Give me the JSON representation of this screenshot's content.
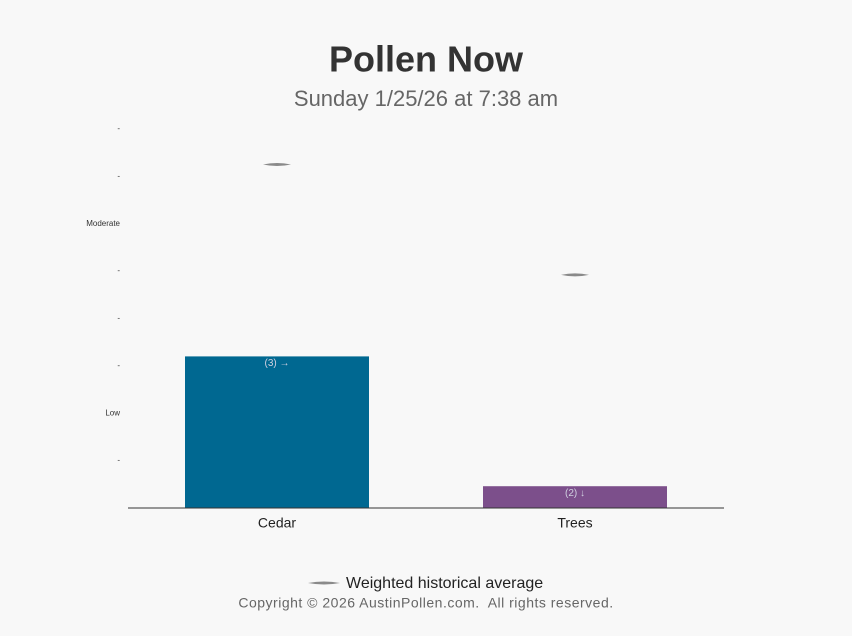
{
  "chart_data": {
    "type": "bar",
    "title": "Pollen Now",
    "subtitle": "Sunday 1/25/26 at 7:38 am",
    "categories": [
      "Cedar",
      "Trees"
    ],
    "values": [
      3.2,
      0.46
    ],
    "colors": [
      "#006891",
      "#7c4f8b"
    ],
    "annotations": [
      "(3) →",
      "(2) ↓"
    ],
    "historical_average": {
      "name": "Weighted historical average",
      "values": [
        7.25,
        4.92
      ],
      "color": "#8a8a8a"
    },
    "ylim": [
      0,
      8
    ],
    "yticks": [
      {
        "value": 1,
        "label": "-"
      },
      {
        "value": 2,
        "label": "Low"
      },
      {
        "value": 3,
        "label": "-"
      },
      {
        "value": 4,
        "label": "-"
      },
      {
        "value": 5,
        "label": "-"
      },
      {
        "value": 6,
        "label": "Moderate"
      },
      {
        "value": 7,
        "label": "-"
      },
      {
        "value": 8,
        "label": "-"
      }
    ],
    "footer": "Copyright © 2026 AustinPollen.com.  All rights reserved."
  }
}
